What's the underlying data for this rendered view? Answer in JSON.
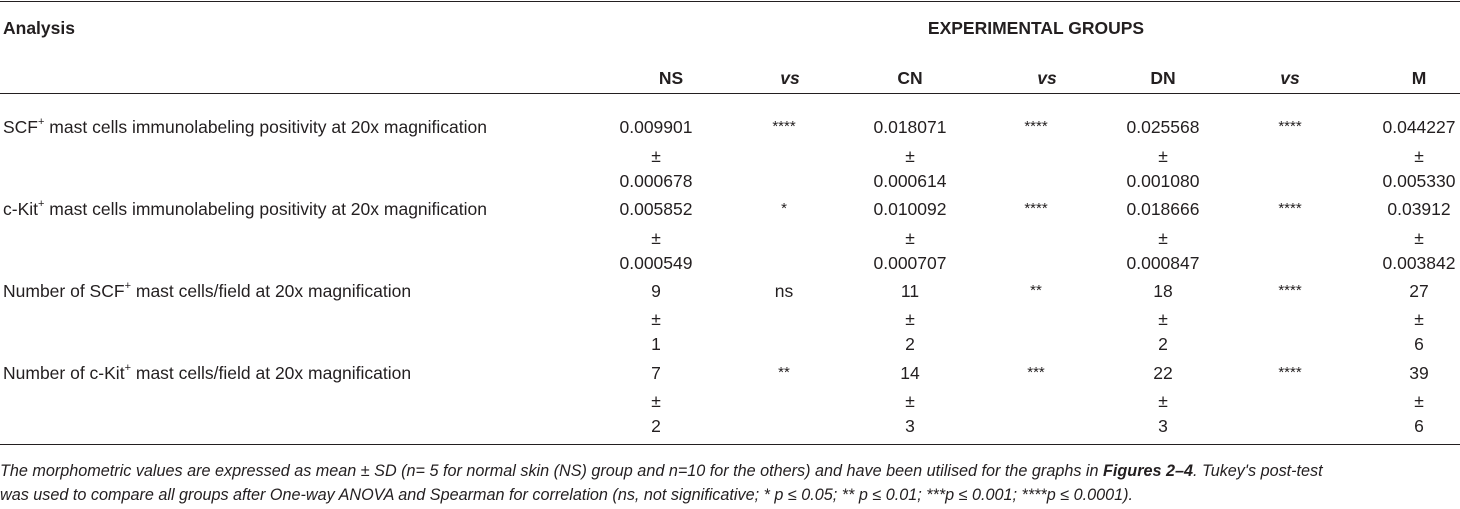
{
  "header": {
    "analysis_label": "Analysis",
    "groups_label": "EXPERIMENTAL GROUPS",
    "columns": [
      "NS",
      "vs",
      "CN",
      "vs",
      "DN",
      "vs",
      "M"
    ]
  },
  "rows": [
    {
      "label_pre": "SCF",
      "label_sup": "+",
      "label_post": " mast cells immunolabeling positivity at 20x magnification",
      "ns": {
        "mean": "0.009901",
        "pm": "±",
        "sd": "0.000678"
      },
      "vs1": "****",
      "cn": {
        "mean": "0.018071",
        "pm": "±",
        "sd": "0.000614"
      },
      "vs2": "****",
      "dn": {
        "mean": "0.025568",
        "pm": "±",
        "sd": "0.001080"
      },
      "vs3": "****",
      "m": {
        "mean": "0.044227",
        "pm": "±",
        "sd": "0.005330"
      }
    },
    {
      "label_pre": "c-Kit",
      "label_sup": "+",
      "label_post": " mast cells immunolabeling positivity at 20x magnification",
      "ns": {
        "mean": "0.005852",
        "pm": "±",
        "sd": "0.000549"
      },
      "vs1": "*",
      "cn": {
        "mean": "0.010092",
        "pm": "±",
        "sd": "0.000707"
      },
      "vs2": "****",
      "dn": {
        "mean": "0.018666",
        "pm": "±",
        "sd": "0.000847"
      },
      "vs3": "****",
      "m": {
        "mean": "0.03912",
        "pm": "±",
        "sd": "0.003842"
      }
    },
    {
      "label_pre": "Number of SCF",
      "label_sup": "+",
      "label_post": " mast cells/field at 20x magnification",
      "ns": {
        "mean": "9",
        "pm": "±",
        "sd": "1"
      },
      "vs1": "ns",
      "cn": {
        "mean": "11",
        "pm": "±",
        "sd": "2"
      },
      "vs2": "**",
      "dn": {
        "mean": "18",
        "pm": "±",
        "sd": "2"
      },
      "vs3": "****",
      "m": {
        "mean": "27",
        "pm": "±",
        "sd": "6"
      }
    },
    {
      "label_pre": "Number of c-Kit",
      "label_sup": "+",
      "label_post": " mast cells/field at 20x magnification",
      "ns": {
        "mean": "7",
        "pm": "±",
        "sd": "2"
      },
      "vs1": "**",
      "cn": {
        "mean": "14",
        "pm": "±",
        "sd": "3"
      },
      "vs2": "***",
      "dn": {
        "mean": "22",
        "pm": "±",
        "sd": "3"
      },
      "vs3": "****",
      "m": {
        "mean": "39",
        "pm": "±",
        "sd": "6"
      }
    }
  ],
  "footnote": {
    "line1_pre": "The morphometric values are expressed as mean ± SD (n= 5 for normal skin (NS) group and n=10 for the others) and have been utilised for the graphs in ",
    "line1_bold": "Figures 2–4",
    "line1_post": ". Tukey's post-test",
    "line2": "was used to compare all groups after One-way ANOVA and Spearman for correlation (ns, not significative; * p ≤ 0.05; ** p ≤ 0.01; ***p ≤ 0.001; ****p ≤ 0.0001)."
  }
}
